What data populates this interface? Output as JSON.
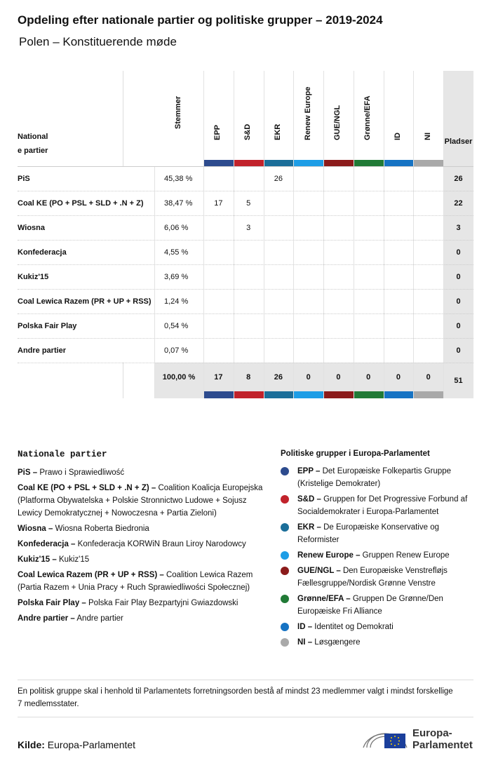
{
  "header": {
    "title": "Opdeling efter nationale partier og politiske grupper – 2019-2024",
    "subtitle": "Polen – Konstituerende møde"
  },
  "table": {
    "party_header": "Nationale partier",
    "votes_header": "Stemmer",
    "seats_header": "Pladser",
    "groups": [
      {
        "name": "EPP",
        "color": "#2d4b8e"
      },
      {
        "name": "S&D",
        "color": "#c1222b"
      },
      {
        "name": "EKR",
        "color": "#1b6e99"
      },
      {
        "name": "Renew Europe",
        "color": "#1d9de6"
      },
      {
        "name": "GUE/NGL",
        "color": "#8b1b1b"
      },
      {
        "name": "Grønne/EFA",
        "color": "#217a36"
      },
      {
        "name": "ID",
        "color": "#1673c3"
      },
      {
        "name": "NI",
        "color": "#a9a9a9"
      }
    ],
    "rows": [
      {
        "party": "PiS",
        "votes": "45,38 %",
        "groups": [
          null,
          null,
          "26",
          null,
          null,
          null,
          null,
          null
        ],
        "seats": "26"
      },
      {
        "party": "Coal KE (PO + PSL + SLD + .N + Z)",
        "votes": "38,47 %",
        "groups": [
          "17",
          "5",
          null,
          null,
          null,
          null,
          null,
          null
        ],
        "seats": "22"
      },
      {
        "party": "Wiosna",
        "votes": "6,06 %",
        "groups": [
          null,
          "3",
          null,
          null,
          null,
          null,
          null,
          null
        ],
        "seats": "3"
      },
      {
        "party": "Konfederacja",
        "votes": "4,55 %",
        "groups": [
          null,
          null,
          null,
          null,
          null,
          null,
          null,
          null
        ],
        "seats": "0"
      },
      {
        "party": "Kukiz'15",
        "votes": "3,69 %",
        "groups": [
          null,
          null,
          null,
          null,
          null,
          null,
          null,
          null
        ],
        "seats": "0"
      },
      {
        "party": "Coal Lewica Razem (PR + UP + RSS)",
        "votes": "1,24 %",
        "groups": [
          null,
          null,
          null,
          null,
          null,
          null,
          null,
          null
        ],
        "seats": "0"
      },
      {
        "party": "Polska Fair Play",
        "votes": "0,54 %",
        "groups": [
          null,
          null,
          null,
          null,
          null,
          null,
          null,
          null
        ],
        "seats": "0"
      },
      {
        "party": "Andre partier",
        "votes": "0,07 %",
        "groups": [
          null,
          null,
          null,
          null,
          null,
          null,
          null,
          null
        ],
        "seats": "0"
      }
    ],
    "totals": {
      "votes": "100,00 %",
      "groups": [
        "17",
        "8",
        "26",
        "0",
        "0",
        "0",
        "0",
        "0"
      ],
      "seats": "51"
    }
  },
  "national_legend": {
    "title": "Nationale partier",
    "items": [
      {
        "label": "PiS –",
        "text": "Prawo i Sprawiedliwość"
      },
      {
        "label": "Coal KE (PO + PSL + SLD + .N + Z) –",
        "text": "Coalition Koalicja Europejska (Platforma Obywatelska + Polskie Stronnictwo Ludowe + Sojusz Lewicy Demokratycznej + Nowoczesna + Partia Zieloni)"
      },
      {
        "label": "Wiosna –",
        "text": "Wiosna Roberta Biedronia"
      },
      {
        "label": "Konfederacja –",
        "text": "Konfederacja KORWiN Braun Liroy Narodowcy"
      },
      {
        "label": "Kukiz'15 –",
        "text": "Kukiz'15"
      },
      {
        "label": "Coal Lewica Razem (PR + UP + RSS) –",
        "text": "Coalition Lewica Razem (Partia Razem + Unia Pracy + Ruch Sprawiedliwości Społecznej)"
      },
      {
        "label": "Polska Fair Play –",
        "text": "Polska Fair Play Bezpartyjni Gwiazdowski"
      },
      {
        "label": "Andre partier –",
        "text": "Andre partier"
      }
    ]
  },
  "group_legend": {
    "title": "Politiske grupper i Europa-Parlamentet",
    "items": [
      {
        "label": "EPP –",
        "text": "Det Europæiske Folkepartis Gruppe (Kristelige Demokrater)"
      },
      {
        "label": "S&D –",
        "text": "Gruppen for Det Progressive Forbund af Socialdemokrater i Europa-Parlamentet"
      },
      {
        "label": "EKR –",
        "text": "De Europæiske Konservative og Reformister"
      },
      {
        "label": "Renew Europe –",
        "text": "Gruppen Renew Europe"
      },
      {
        "label": "GUE/NGL –",
        "text": "Den Europæiske Venstrefløjs Fællesgruppe/Nordisk Grønne Venstre"
      },
      {
        "label": "Grønne/EFA –",
        "text": "Gruppen De Grønne/Den Europæiske Fri Alliance"
      },
      {
        "label": "ID –",
        "text": "Identitet og Demokrati"
      },
      {
        "label": "NI –",
        "text": "Løsgængere"
      }
    ]
  },
  "footer": {
    "note": "En politisk gruppe skal i henhold til Parlamentets forretningsorden bestå af mindst 23 medlemmer valgt i mindst forskellige 7 medlemsstater.",
    "source_label": "Kilde:",
    "source": "Europa-Parlamentet",
    "logo": "Europa-Parlamentet"
  }
}
